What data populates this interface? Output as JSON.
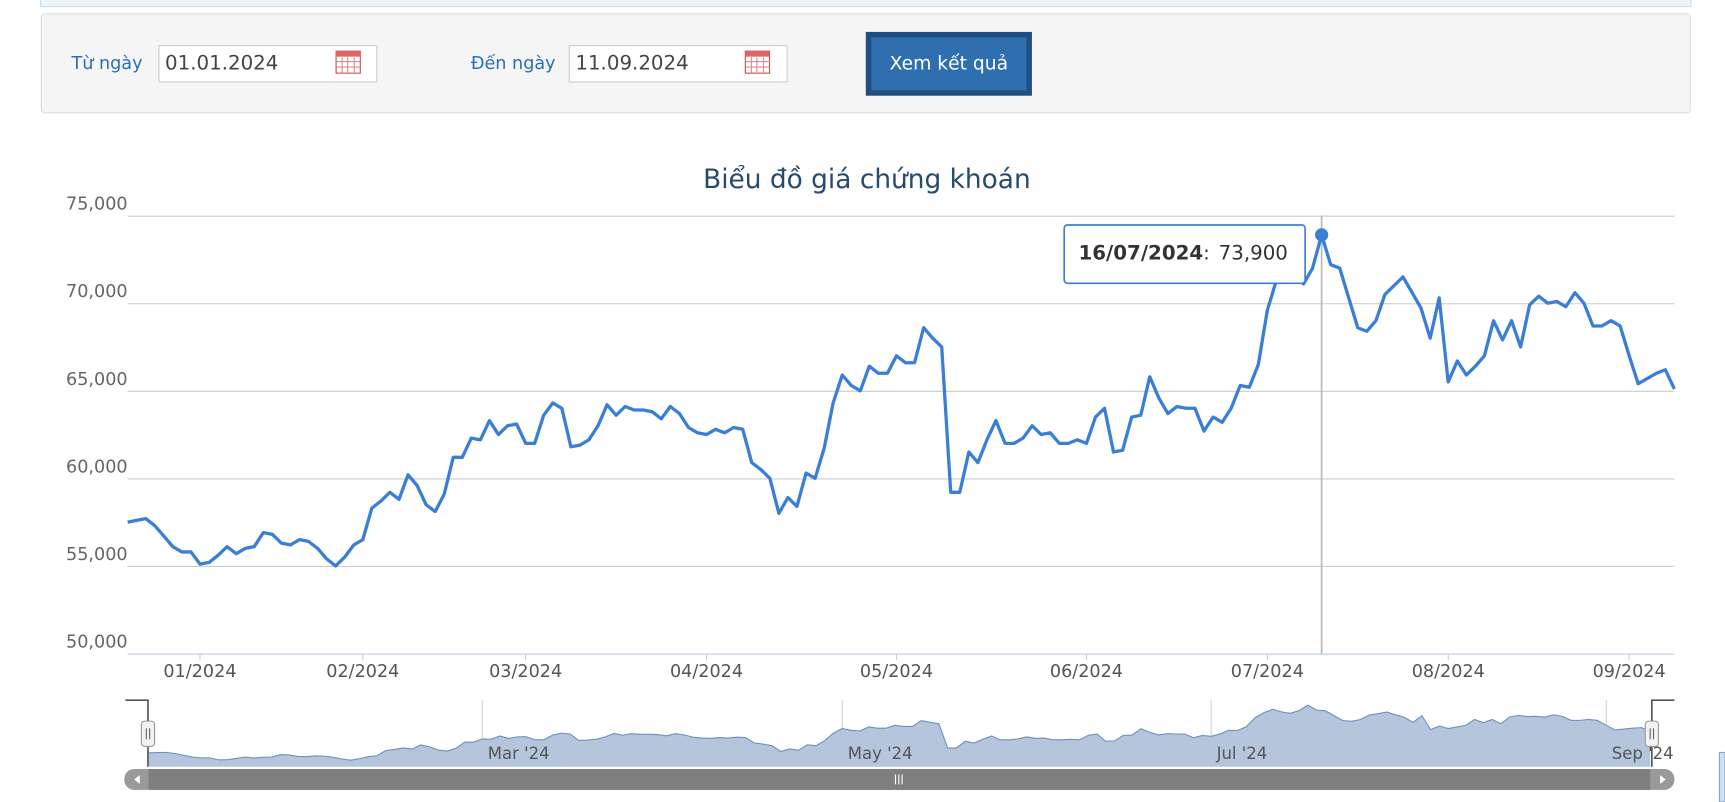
{
  "form": {
    "from_label": "Từ ngày",
    "from_value": "01.01.2024",
    "to_label": "Đến ngày",
    "to_value": "11.09.2024",
    "button": "Xem kết quả"
  },
  "chart_data": {
    "type": "line",
    "title": "Biểu đồ giá chứng khoán",
    "color": "#3a7fd5",
    "grid": true,
    "x": [
      "02/01/2024",
      "03/01/2024",
      "04/01/2024",
      "05/01/2024",
      "08/01/2024",
      "09/01/2024",
      "10/01/2024",
      "11/01/2024",
      "12/01/2024",
      "15/01/2024",
      "16/01/2024",
      "17/01/2024",
      "18/01/2024",
      "19/01/2024",
      "22/01/2024",
      "23/01/2024",
      "24/01/2024",
      "25/01/2024",
      "26/01/2024",
      "29/01/2024",
      "30/01/2024",
      "31/01/2024",
      "01/02/2024",
      "02/02/2024",
      "05/02/2024",
      "06/02/2024",
      "07/02/2024",
      "15/02/2024",
      "16/02/2024",
      "19/02/2024",
      "20/02/2024",
      "21/02/2024",
      "22/02/2024",
      "23/02/2024",
      "26/02/2024",
      "27/02/2024",
      "28/02/2024",
      "29/02/2024",
      "01/03/2024",
      "04/03/2024",
      "05/03/2024",
      "06/03/2024",
      "07/03/2024",
      "08/03/2024",
      "11/03/2024",
      "12/03/2024",
      "13/03/2024",
      "14/03/2024",
      "15/03/2024",
      "18/03/2024",
      "19/03/2024",
      "20/03/2024",
      "21/03/2024",
      "22/03/2024",
      "25/03/2024",
      "26/03/2024",
      "27/03/2024",
      "28/03/2024",
      "29/03/2024",
      "01/04/2024",
      "02/04/2024",
      "03/04/2024",
      "04/04/2024",
      "05/04/2024",
      "08/04/2024",
      "09/04/2024",
      "10/04/2024",
      "11/04/2024",
      "12/04/2024",
      "15/04/2024",
      "16/04/2024",
      "17/04/2024",
      "19/04/2024",
      "22/04/2024",
      "23/04/2024",
      "24/04/2024",
      "25/04/2024",
      "26/04/2024",
      "29/04/2024",
      "02/05/2024",
      "03/05/2024",
      "06/05/2024",
      "07/05/2024",
      "08/05/2024",
      "09/05/2024",
      "10/05/2024",
      "13/05/2024",
      "14/05/2024",
      "15/05/2024",
      "16/05/2024",
      "17/05/2024",
      "20/05/2024",
      "21/05/2024",
      "22/05/2024",
      "23/05/2024",
      "24/05/2024",
      "27/05/2024",
      "28/05/2024",
      "29/05/2024",
      "30/05/2024",
      "31/05/2024",
      "03/06/2024",
      "04/06/2024",
      "05/06/2024",
      "06/06/2024",
      "07/06/2024",
      "10/06/2024",
      "11/06/2024",
      "12/06/2024",
      "13/06/2024",
      "14/06/2024",
      "17/06/2024",
      "18/06/2024",
      "19/06/2024",
      "20/06/2024",
      "21/06/2024",
      "24/06/2024",
      "25/06/2024",
      "26/06/2024",
      "27/06/2024",
      "28/06/2024",
      "01/07/2024",
      "02/07/2024",
      "03/07/2024",
      "04/07/2024",
      "05/07/2024",
      "08/07/2024",
      "09/07/2024",
      "10/07/2024",
      "11/07/2024",
      "12/07/2024",
      "15/07/2024",
      "16/07/2024",
      "17/07/2024",
      "18/07/2024",
      "19/07/2024",
      "22/07/2024",
      "23/07/2024",
      "24/07/2024",
      "25/07/2024",
      "26/07/2024",
      "29/07/2024",
      "30/07/2024",
      "31/07/2024",
      "01/08/2024",
      "02/08/2024",
      "05/08/2024",
      "06/08/2024",
      "07/08/2024",
      "08/08/2024",
      "09/08/2024",
      "12/08/2024",
      "13/08/2024",
      "14/08/2024",
      "15/08/2024",
      "16/08/2024",
      "19/08/2024",
      "20/08/2024",
      "21/08/2024",
      "22/08/2024",
      "23/08/2024",
      "26/08/2024",
      "27/08/2024",
      "28/08/2024",
      "29/08/2024",
      "30/08/2024",
      "04/09/2024",
      "05/09/2024",
      "06/09/2024",
      "09/09/2024",
      "10/09/2024",
      "11/09/2024"
    ],
    "values": [
      57500,
      57600,
      57700,
      57300,
      56700,
      56100,
      55800,
      55800,
      55100,
      55200,
      55600,
      56100,
      55700,
      56000,
      56100,
      56900,
      56800,
      56300,
      56200,
      56500,
      56400,
      56000,
      55400,
      55000,
      55500,
      56200,
      56500,
      58300,
      58700,
      59200,
      58800,
      60200,
      59600,
      58500,
      58100,
      59100,
      61200,
      61200,
      62300,
      62200,
      63300,
      62500,
      63000,
      63100,
      62000,
      62000,
      63600,
      64300,
      64000,
      61800,
      61900,
      62200,
      63000,
      64200,
      63600,
      64100,
      63900,
      63900,
      63800,
      63400,
      64100,
      63700,
      62900,
      62600,
      62500,
      62800,
      62600,
      62900,
      62800,
      60900,
      60500,
      60000,
      58000,
      58900,
      58400,
      60300,
      60000,
      61700,
      64300,
      65900,
      65300,
      65000,
      66400,
      66000,
      66000,
      67000,
      66600,
      66600,
      68600,
      68000,
      67500,
      59200,
      59200,
      61500,
      60900,
      62200,
      63300,
      62000,
      62000,
      62300,
      63000,
      62500,
      62600,
      62000,
      62000,
      62200,
      62000,
      63500,
      64000,
      61500,
      61600,
      63500,
      63600,
      65800,
      64600,
      63700,
      64100,
      64000,
      64000,
      62700,
      63500,
      63200,
      64000,
      65300,
      65200,
      66500,
      69600,
      71300,
      72500,
      71600,
      71100,
      72000,
      73900,
      72200,
      72000,
      70300,
      68600,
      68400,
      69000,
      70500,
      71000,
      71500,
      70600,
      69700,
      68000,
      70300,
      65500,
      66700,
      65900,
      66400,
      67000,
      69000,
      67900,
      69000,
      67500,
      69900,
      70400,
      70000,
      70100,
      69800,
      70600,
      70000,
      68700,
      68700,
      69000,
      68700,
      67000,
      65400,
      65700,
      66000,
      66200,
      65100
    ],
    "ylim": [
      50000,
      75000
    ],
    "yticks": [
      {
        "value": 50000,
        "label": "50,000"
      },
      {
        "value": 55000,
        "label": "55,000"
      },
      {
        "value": 60000,
        "label": "60,000"
      },
      {
        "value": 65000,
        "label": "65,000"
      },
      {
        "value": 70000,
        "label": "70,000"
      },
      {
        "value": 75000,
        "label": "75,000"
      }
    ],
    "xticks": [
      {
        "value": "12/01/2024",
        "label": "01/2024"
      },
      {
        "value": "07/02/2024",
        "label": "02/2024"
      },
      {
        "value": "11/03/2024",
        "label": "03/2024"
      },
      {
        "value": "08/04/2024",
        "label": "04/2024"
      },
      {
        "value": "10/05/2024",
        "label": "05/2024"
      },
      {
        "value": "10/06/2024",
        "label": "06/2024"
      },
      {
        "value": "08/07/2024",
        "label": "07/2024"
      },
      {
        "value": "05/08/2024",
        "label": "08/2024"
      },
      {
        "value": "04/09/2024",
        "label": "09/2024"
      }
    ],
    "tooltip": {
      "date": "16/07/2024",
      "separator": ":",
      "value": "73,900"
    },
    "navigator": {
      "ticks": [
        {
          "value": "01/03/2024",
          "label": "Mar '24"
        },
        {
          "value": "02/05/2024",
          "label": "May '24"
        },
        {
          "value": "01/07/2024",
          "label": "Jul '24"
        },
        {
          "value": "04/09/2024",
          "label": "Sep '24"
        }
      ]
    }
  }
}
